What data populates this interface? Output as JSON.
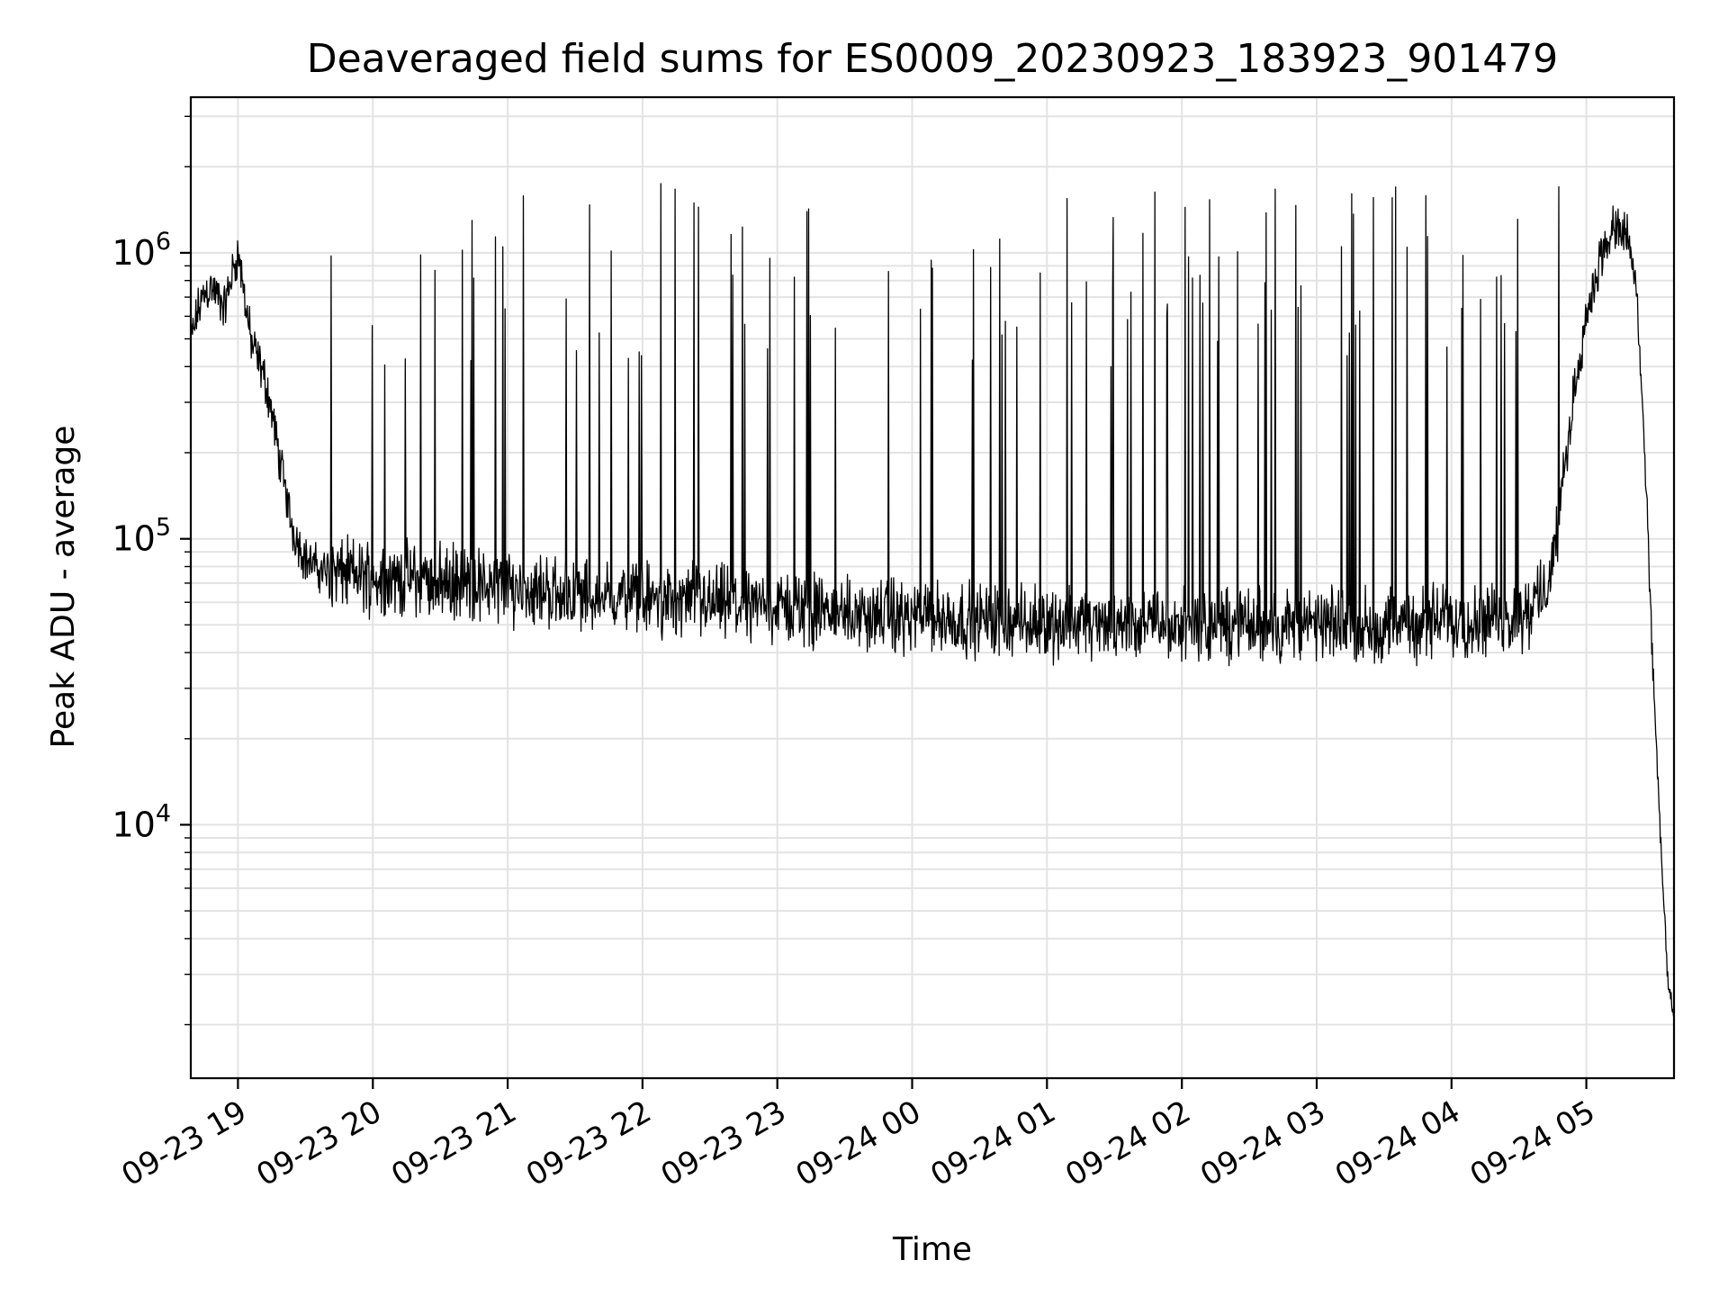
{
  "chart_data": {
    "type": "line",
    "title": "Deaveraged field sums for ES0009_20230923_183923_901479",
    "xlabel": "Time",
    "ylabel": "Peak ADU - average",
    "yscale": "log",
    "xlim": [
      "2023-09-23 18:39",
      "2023-09-24 05:39"
    ],
    "ylim": [
      1300,
      3500000
    ],
    "grid": true,
    "line_color": "#000000",
    "x_ticks": [
      "09-23 19",
      "09-23 20",
      "09-23 21",
      "09-23 22",
      "09-23 23",
      "09-24 00",
      "09-24 01",
      "09-24 02",
      "09-24 03",
      "09-24 04",
      "09-24 05"
    ],
    "y_ticks": [
      {
        "value": 10000,
        "base": "10",
        "exp": "4"
      },
      {
        "value": 100000,
        "base": "10",
        "exp": "5"
      },
      {
        "value": 1000000,
        "base": "10",
        "exp": "6"
      }
    ],
    "series": [
      {
        "x": [
          "2023-09-23 18:39",
          "2023-09-23 18:42",
          "2023-09-23 18:45",
          "2023-09-23 18:48",
          "2023-09-23 18:51",
          "2023-09-23 18:54",
          "2023-09-23 18:57",
          "2023-09-23 19:00",
          "2023-09-23 19:03",
          "2023-09-23 19:06",
          "2023-09-23 19:09",
          "2023-09-23 19:12",
          "2023-09-23 19:15",
          "2023-09-23 19:18",
          "2023-09-23 19:21",
          "2023-09-23 19:24",
          "2023-09-23 19:30",
          "2023-09-23 19:36",
          "2023-09-23 19:45",
          "2023-09-23 20:00",
          "2023-09-23 20:20",
          "2023-09-23 20:40",
          "2023-09-23 21:00",
          "2023-09-23 21:30",
          "2023-09-23 22:00",
          "2023-09-23 22:30",
          "2023-09-23 23:00",
          "2023-09-23 23:30",
          "2023-09-24 00:00",
          "2023-09-24 00:30",
          "2023-09-24 01:00",
          "2023-09-24 01:30",
          "2023-09-24 02:00",
          "2023-09-24 02:30",
          "2023-09-24 03:00",
          "2023-09-24 03:30",
          "2023-09-24 04:00",
          "2023-09-24 04:15",
          "2023-09-24 04:24",
          "2023-09-24 04:30",
          "2023-09-24 04:36",
          "2023-09-24 04:42",
          "2023-09-24 04:48",
          "2023-09-24 04:54",
          "2023-09-24 05:00",
          "2023-09-24 05:06",
          "2023-09-24 05:12",
          "2023-09-24 05:18",
          "2023-09-24 05:22",
          "2023-09-24 05:26",
          "2023-09-24 05:30",
          "2023-09-24 05:33",
          "2023-09-24 05:36",
          "2023-09-24 05:39"
        ],
        "y": [
          480000,
          620000,
          720000,
          760000,
          700000,
          640000,
          820000,
          1000000,
          700000,
          480000,
          420000,
          360000,
          280000,
          200000,
          150000,
          110000,
          85000,
          78000,
          76000,
          74000,
          72000,
          70000,
          68000,
          64000,
          62000,
          60000,
          58000,
          55000,
          53000,
          52000,
          51000,
          50000,
          50000,
          50000,
          50000,
          50000,
          52000,
          52000,
          53000,
          54000,
          58000,
          66000,
          120000,
          300000,
          600000,
          950000,
          1200000,
          1150000,
          800000,
          200000,
          30000,
          9000,
          3000,
          2000
        ]
      }
    ]
  }
}
